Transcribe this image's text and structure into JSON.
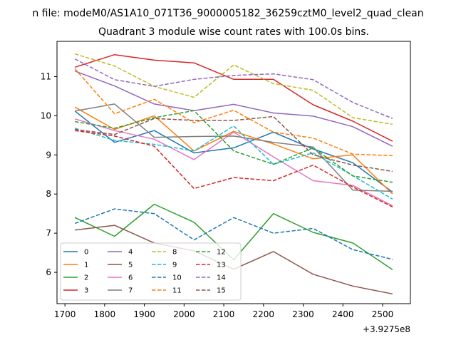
{
  "figure": {
    "suptitle": "n file: modeM0/AS1A10_071T36_9000005182_36259cztM0_level2_quad_clean",
    "offset_label": "+3.9275e8"
  },
  "chart_data": {
    "type": "line",
    "title": "Quadrant 3 module wise count rates with 100.0s bins.",
    "xlabel": "",
    "ylabel": "",
    "x": [
      1725,
      1825,
      1925,
      2025,
      2125,
      2225,
      2325,
      2425,
      2525
    ],
    "xlim": [
      1680,
      2570
    ],
    "ylim": [
      5.2,
      11.9
    ],
    "xticks": [
      1700,
      1800,
      1900,
      2000,
      2100,
      2200,
      2300,
      2400,
      2500
    ],
    "yticks": [
      6,
      7,
      8,
      9,
      10,
      11
    ],
    "grid": false,
    "legend_position": "lower-left",
    "legend_columns": 4,
    "series": [
      {
        "name": "0",
        "color": "#1f77b4",
        "dashed": false,
        "values": [
          10.12,
          9.32,
          9.62,
          9.05,
          9.18,
          9.58,
          9.15,
          8.8,
          8.05
        ]
      },
      {
        "name": "1",
        "color": "#ff7f0e",
        "dashed": false,
        "values": [
          10.22,
          9.65,
          10.0,
          9.1,
          9.6,
          9.28,
          8.9,
          9.0,
          8.0
        ]
      },
      {
        "name": "2",
        "color": "#2ca02c",
        "dashed": false,
        "values": [
          7.4,
          6.92,
          7.74,
          7.28,
          6.32,
          7.5,
          7.02,
          6.75,
          6.07
        ]
      },
      {
        "name": "3",
        "color": "#d62728",
        "dashed": false,
        "values": [
          11.24,
          11.56,
          11.42,
          11.35,
          10.93,
          10.93,
          10.28,
          9.86,
          9.35
        ]
      },
      {
        "name": "4",
        "color": "#9467bd",
        "dashed": false,
        "values": [
          11.14,
          10.76,
          10.3,
          10.13,
          10.29,
          10.07,
          9.99,
          9.72,
          9.22
        ]
      },
      {
        "name": "5",
        "color": "#8c564b",
        "dashed": false,
        "values": [
          7.08,
          7.2,
          6.75,
          6.55,
          6.08,
          6.53,
          5.95,
          5.65,
          5.45
        ]
      },
      {
        "name": "6",
        "color": "#e377c2",
        "dashed": false,
        "values": [
          9.92,
          9.62,
          9.4,
          8.88,
          9.58,
          8.95,
          8.34,
          8.22,
          7.7
        ]
      },
      {
        "name": "7",
        "color": "#7f7f7f",
        "dashed": false,
        "values": [
          10.12,
          10.3,
          9.45,
          9.47,
          9.48,
          9.32,
          9.2,
          8.1,
          8.07
        ]
      },
      {
        "name": "8",
        "color": "#bcbd22",
        "dashed": true,
        "values": [
          11.58,
          11.27,
          10.75,
          10.47,
          11.3,
          10.82,
          10.65,
          9.95,
          9.78
        ]
      },
      {
        "name": "9",
        "color": "#17becf",
        "dashed": true,
        "values": [
          9.68,
          9.37,
          9.27,
          9.1,
          9.74,
          8.76,
          9.05,
          8.47,
          7.87
        ]
      },
      {
        "name": "10",
        "color": "#1f77b4",
        "dashed": true,
        "values": [
          7.25,
          7.62,
          7.5,
          6.83,
          7.4,
          7.0,
          7.12,
          6.58,
          6.33
        ]
      },
      {
        "name": "11",
        "color": "#ff7f0e",
        "dashed": true,
        "values": [
          11.2,
          10.05,
          10.42,
          9.82,
          10.14,
          9.58,
          9.43,
          9.02,
          8.98
        ]
      },
      {
        "name": "12",
        "color": "#2ca02c",
        "dashed": true,
        "values": [
          9.85,
          9.68,
          9.95,
          10.13,
          9.1,
          8.76,
          9.18,
          8.46,
          8.3
        ]
      },
      {
        "name": "13",
        "color": "#d62728",
        "dashed": true,
        "values": [
          9.62,
          9.48,
          9.22,
          8.14,
          8.42,
          8.34,
          8.74,
          8.18,
          7.67
        ]
      },
      {
        "name": "14",
        "color": "#9467bd",
        "dashed": true,
        "values": [
          11.45,
          10.92,
          10.75,
          10.93,
          11.03,
          11.07,
          10.92,
          10.34,
          9.93
        ]
      },
      {
        "name": "15",
        "color": "#8c564b",
        "dashed": true,
        "values": [
          9.65,
          9.52,
          9.93,
          9.88,
          9.88,
          9.98,
          9.0,
          8.74,
          8.58
        ]
      }
    ]
  }
}
